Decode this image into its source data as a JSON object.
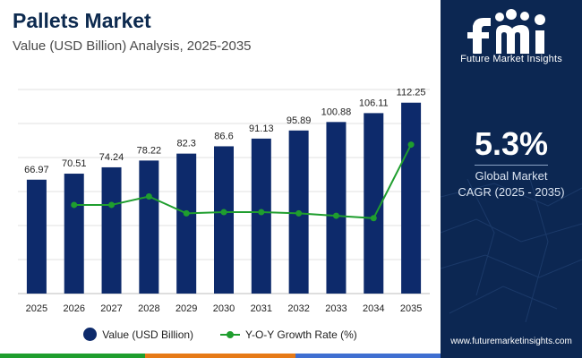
{
  "header": {
    "title": "Pallets Market",
    "subtitle": "Value (USD Billion) Analysis, 2025-2035"
  },
  "chart_data": {
    "type": "bar",
    "categories": [
      "2025",
      "2026",
      "2027",
      "2028",
      "2029",
      "2030",
      "2031",
      "2032",
      "2033",
      "2034",
      "2035"
    ],
    "series": [
      {
        "name": "Value (USD Billion)",
        "type": "bar",
        "color": "#0d2a6b",
        "values": [
          66.97,
          70.51,
          74.24,
          78.22,
          82.3,
          86.6,
          91.13,
          95.89,
          100.88,
          106.11,
          112.25
        ]
      },
      {
        "name": "Y-O-Y Growth Rate (%)",
        "type": "line",
        "color": "#1f9e2e",
        "values": [
          null,
          5.29,
          5.29,
          5.36,
          5.22,
          5.23,
          5.23,
          5.22,
          5.2,
          5.18,
          5.79
        ]
      }
    ],
    "value_labels": [
      "66.97",
      "70.51",
      "74.24",
      "78.22",
      "82.3",
      "86.6",
      "91.13",
      "95.89",
      "100.88",
      "106.11",
      "112.25"
    ],
    "ylim": [
      0,
      120
    ],
    "grid": true,
    "legend_position": "bottom-center"
  },
  "legend": {
    "bar_label": "Value (USD Billion)",
    "line_label": "Y-O-Y Growth Rate (%)"
  },
  "panel": {
    "logo_letters": "fmi",
    "logo_name": "Future Market Insights",
    "cagr_value": "5.3%",
    "cagr_label_line1": "Global Market",
    "cagr_label_line2": "CAGR (2025 - 2035)",
    "website": "www.futuremarketinsights.com"
  },
  "colors": {
    "panel_bg": "#0c2752",
    "bar": "#0d2a6b",
    "line": "#1f9e2e",
    "bottom_bar": [
      "#1f9e2e",
      "#e67a17",
      "#3f6fd1",
      "#8e2b8f"
    ]
  }
}
